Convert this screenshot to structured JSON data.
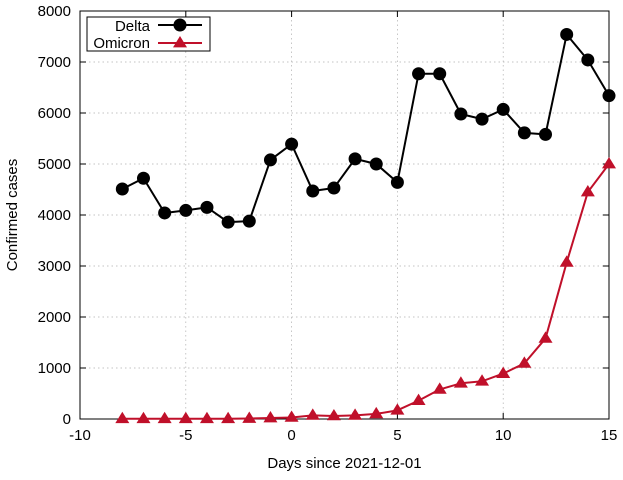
{
  "chart_data": {
    "type": "line",
    "title": "",
    "xlabel": "Days since 2021-12-01",
    "ylabel": "Confirmed cases",
    "xlim": [
      -10,
      15
    ],
    "ylim": [
      0,
      8000
    ],
    "x_ticks": [
      -10,
      -5,
      0,
      5,
      10,
      15
    ],
    "y_ticks": [
      0,
      1000,
      2000,
      3000,
      4000,
      5000,
      6000,
      7000,
      8000
    ],
    "grid": true,
    "legend_position": "top-left",
    "x": [
      -8,
      -7,
      -6,
      -5,
      -4,
      -3,
      -2,
      -1,
      0,
      1,
      2,
      3,
      4,
      5,
      6,
      7,
      8,
      9,
      10,
      11,
      12,
      13,
      14,
      15
    ],
    "series": [
      {
        "name": "Delta",
        "color": "#000000",
        "marker": "circle",
        "values": [
          4510,
          4720,
          4040,
          4090,
          4150,
          3860,
          3880,
          5080,
          5390,
          4470,
          4530,
          5100,
          5000,
          4640,
          6770,
          6770,
          5980,
          5880,
          6070,
          5610,
          5580,
          7540,
          7040,
          6340
        ]
      },
      {
        "name": "Omicron",
        "color": "#c0102a",
        "marker": "triangle",
        "values": [
          5,
          5,
          5,
          5,
          5,
          5,
          10,
          20,
          30,
          70,
          60,
          70,
          100,
          170,
          360,
          580,
          700,
          740,
          890,
          1090,
          1580,
          3070,
          4450,
          5000
        ]
      }
    ]
  }
}
